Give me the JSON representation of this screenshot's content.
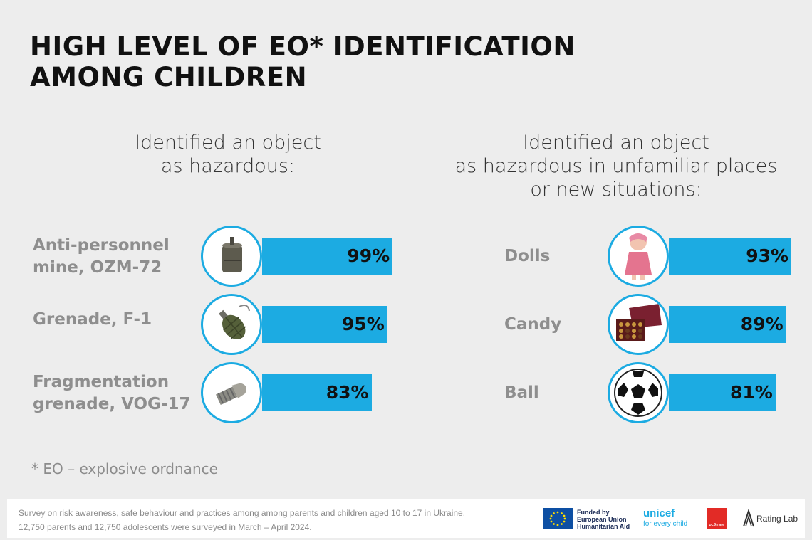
{
  "title": {
    "line1": "HIGH LEVEL OF EO* IDENTIFICATION",
    "line2": "AMONG CHILDREN"
  },
  "left": {
    "heading": [
      "Identified an object",
      "as hazardous:"
    ]
  },
  "right": {
    "heading": [
      "Identified an object",
      "as hazardous in unfamiliar places",
      "or new situations:"
    ]
  },
  "chart_data": [
    {
      "type": "bar",
      "title": "Identified an object as hazardous:",
      "categories": [
        "Anti-personnel mine, OZM-72",
        "Grenade, F-1",
        "Fragmentation grenade, VOG-17"
      ],
      "values": [
        99,
        95,
        83
      ],
      "value_labels": [
        "99%",
        "95%",
        "83%"
      ],
      "label_lines": [
        [
          "Anti-personnel",
          "mine, OZM-72"
        ],
        [
          "Grenade, F-1"
        ],
        [
          "Fragmentation",
          "grenade, VOG-17"
        ]
      ],
      "icons": [
        "mine-icon",
        "grenade-icon",
        "vog-grenade-icon"
      ],
      "orientation": "horizontal",
      "color": "#1cabe2"
    },
    {
      "type": "bar",
      "title": "Identified an object as hazardous in unfamiliar places or new situations:",
      "categories": [
        "Dolls",
        "Candy",
        "Ball"
      ],
      "values": [
        93,
        89,
        81
      ],
      "value_labels": [
        "93%",
        "89%",
        "81%"
      ],
      "label_lines": [
        [
          "Dolls"
        ],
        [
          "Candy"
        ],
        [
          "Ball"
        ]
      ],
      "icons": [
        "doll-icon",
        "candy-box-icon",
        "soccer-ball-icon"
      ],
      "orientation": "horizontal",
      "color": "#1cabe2"
    }
  ],
  "footnote": "* EO – explosive ordnance",
  "footer": {
    "line1": "Survey on risk awareness, safe behaviour and practices among among parents and children aged 10 to 17 in Ukraine.",
    "line2": "12,750 parents and 12,750 adolescents were surveyed in March – April 2024.",
    "eu_lines": [
      "Funded by",
      "European Union",
      "Humanitarian Aid"
    ],
    "unicef_name": "unicef",
    "unicef_tagline": "for every child",
    "reyting_label": "РЕЙТИНГ",
    "ratinglab_label": "Rating Lab"
  },
  "colors": {
    "accent": "#1cabe2",
    "background": "#ededed",
    "label_gray": "#8e8e8e"
  }
}
